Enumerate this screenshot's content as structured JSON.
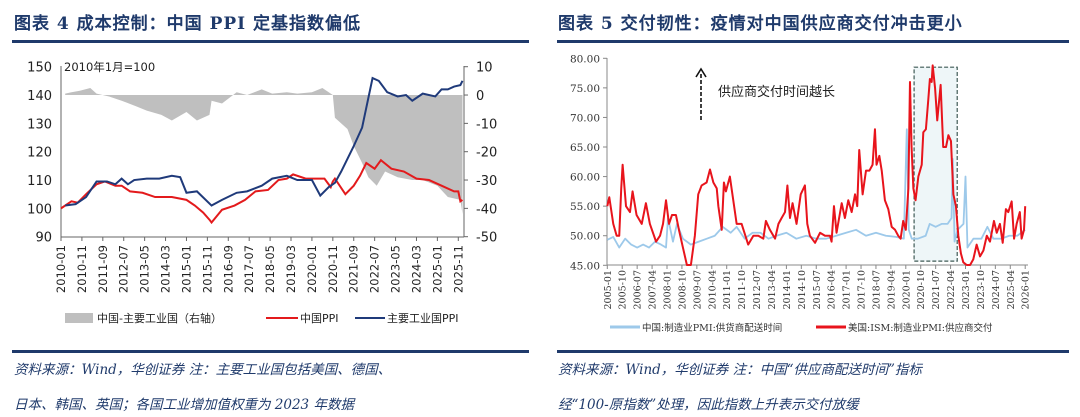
{
  "left": {
    "title": "图表 4   成本控制：中国 PPI 定基指数偏低",
    "note_line1": "资料来源：Wind，华创证券   注：主要工业国包括美国、德国、",
    "note_line2": "日本、韩国、英国；各国工业增加值权重为 2023 年数据"
  },
  "right": {
    "title": "图表 5   交付韧性：疫情对中国供应商交付冲击更小",
    "note_line1": "资料来源：Wind，华创证券   注：中国“供应商配送时间”指标",
    "note_line2": "经“100-原指数”处理，因此指数上升表示交付放缓"
  },
  "chart_data": [
    {
      "type": "line",
      "annotation": "2010年1月=100",
      "ylim": [
        90,
        150
      ],
      "yticks": [
        "150",
        "140",
        "130",
        "120",
        "110",
        "100",
        "90"
      ],
      "y2lim": [
        -50,
        10
      ],
      "y2ticks": [
        "10",
        "0",
        "-10",
        "-20",
        "-30",
        "-40",
        "-50"
      ],
      "xticks": [
        "2010-01",
        "2010-11",
        "2011-09",
        "2012-07",
        "2013-05",
        "2014-03",
        "2015-01",
        "2015-11",
        "2016-09",
        "2017-07",
        "2018-05",
        "2019-03",
        "2020-01",
        "2020-11",
        "2021-09",
        "2022-07",
        "2023-05",
        "2024-03",
        "2025-01",
        "2025-11"
      ],
      "legend_position": "bottom",
      "series": [
        {
          "name": "中国-主要工业国（右轴）",
          "type": "area",
          "axis": "right",
          "color": "#bfbfbf",
          "x": [
            "2010-03",
            "2010-06",
            "2010-10",
            "2011-03",
            "2011-06",
            "2011-12",
            "2012-06",
            "2013-01",
            "2013-06",
            "2014-01",
            "2014-06",
            "2015-01",
            "2015-06",
            "2015-12",
            "2016-01",
            "2016-06",
            "2017-01",
            "2017-06",
            "2018-01",
            "2018-06",
            "2019-01",
            "2019-06",
            "2020-01",
            "2020-06",
            "2020-11",
            "2020-12",
            "2021-06",
            "2021-09",
            "2022-01",
            "2022-04",
            "2022-08",
            "2022-12",
            "2023-06",
            "2024-01",
            "2024-06",
            "2025-01",
            "2025-06",
            "2025-12",
            "2026-01"
          ],
          "values": [
            0.5,
            1,
            1.5,
            2.5,
            0.5,
            -0.5,
            -2,
            -4,
            -5.5,
            -7,
            -9,
            -6,
            -9,
            -7,
            -2,
            -3,
            1,
            0,
            2,
            0.5,
            1,
            0.5,
            1,
            2.5,
            0,
            -8,
            -12,
            -18,
            -24,
            -29,
            -32,
            -27,
            -29,
            -30,
            -30,
            -32,
            -36,
            -37,
            -42
          ]
        },
        {
          "name": "中国PPI",
          "type": "line",
          "axis": "left",
          "color": "#e31a1c",
          "x": [
            "2010-01",
            "2010-06",
            "2010-09",
            "2011-01",
            "2011-06",
            "2011-10",
            "2012-03",
            "2012-06",
            "2012-10",
            "2013-04",
            "2013-10",
            "2014-06",
            "2015-01",
            "2015-05",
            "2015-09",
            "2015-12",
            "2016-01",
            "2016-06",
            "2016-12",
            "2017-05",
            "2017-10",
            "2018-04",
            "2018-09",
            "2019-01",
            "2019-04",
            "2019-10",
            "2020-04",
            "2020-07",
            "2020-10",
            "2020-11",
            "2020-12",
            "2021-05",
            "2021-09",
            "2021-12",
            "2022-03",
            "2022-07",
            "2022-10",
            "2023-03",
            "2023-09",
            "2024-03",
            "2024-09",
            "2025-03",
            "2025-09",
            "2025-11",
            "2025-12",
            "2026-01"
          ],
          "values": [
            100,
            102.5,
            102,
            105,
            108.5,
            109.5,
            108,
            108,
            106,
            105.5,
            104,
            104,
            103,
            101,
            98.5,
            96,
            95,
            99.5,
            101,
            103,
            106,
            106.5,
            110,
            110.5,
            112,
            110.5,
            110.5,
            110.5,
            107.5,
            109.5,
            110.5,
            105,
            108,
            111.5,
            116,
            114,
            117,
            114,
            113,
            110.5,
            110,
            108,
            106,
            106,
            102.5,
            103
          ]
        },
        {
          "name": "主要工业国PPI",
          "type": "line",
          "axis": "left",
          "color": "#1f3a7a",
          "x": [
            "2010-03",
            "2010-08",
            "2011-01",
            "2011-06",
            "2011-11",
            "2012-03",
            "2012-06",
            "2012-09",
            "2012-12",
            "2013-06",
            "2013-12",
            "2014-06",
            "2014-10",
            "2015-01",
            "2015-06",
            "2016-01",
            "2016-06",
            "2017-01",
            "2017-06",
            "2018-01",
            "2018-06",
            "2019-01",
            "2019-06",
            "2020-01",
            "2020-05",
            "2020-09",
            "2020-12",
            "2021-03",
            "2021-09",
            "2022-01",
            "2022-06",
            "2022-09",
            "2023-01",
            "2023-06",
            "2023-10",
            "2024-01",
            "2024-06",
            "2024-12",
            "2025-03",
            "2025-06",
            "2025-09",
            "2025-12",
            "2026-01"
          ],
          "values": [
            101,
            101.5,
            104,
            109.5,
            109.5,
            108.5,
            110.5,
            108.5,
            110,
            110.5,
            110.5,
            111.5,
            111,
            105.5,
            106,
            101,
            103,
            105.5,
            106,
            108,
            110.5,
            111.5,
            110,
            110,
            104.5,
            107.5,
            109,
            113,
            122,
            128.5,
            146,
            145,
            141,
            139.5,
            140,
            138,
            140.5,
            139.5,
            142,
            142,
            143,
            143.5,
            145
          ]
        }
      ]
    },
    {
      "type": "line",
      "annotation": "供应商交付时间越长",
      "ylim": [
        45,
        80
      ],
      "yticks": [
        "80.00",
        "75.00",
        "70.00",
        "65.00",
        "60.00",
        "55.00",
        "50.00",
        "45.00"
      ],
      "xticks": [
        "2005-01",
        "2005-10",
        "2006-07",
        "2007-04",
        "2008-01",
        "2008-10",
        "2009-07",
        "2010-04",
        "2011-01",
        "2011-10",
        "2012-07",
        "2013-04",
        "2014-01",
        "2014-10",
        "2015-07",
        "2016-04",
        "2017-01",
        "2017-10",
        "2018-07",
        "2019-04",
        "2020-01",
        "2020-10",
        "2021-07",
        "2022-04",
        "2023-01",
        "2023-10",
        "2024-07",
        "2025-04",
        "2026-01"
      ],
      "highlight_box": {
        "x": [
          "2020-06",
          "2022-08"
        ],
        "y": [
          45.7,
          78.5
        ]
      },
      "legend_position": "bottom",
      "series": [
        {
          "name": "中国:制造业PMI:供货商配送时间",
          "color": "#9dc9ea",
          "x": [
            2005.0,
            2005.3,
            2005.6,
            2005.9,
            2006.2,
            2006.5,
            2006.8,
            2007.1,
            2007.4,
            2007.7,
            2007.95,
            2008.05,
            2008.3,
            2008.5,
            2008.8,
            2009.2,
            2009.6,
            2010.0,
            2010.4,
            2010.8,
            2011.2,
            2011.5,
            2011.9,
            2012.3,
            2012.7,
            2013.1,
            2013.5,
            2014.0,
            2014.5,
            2015.0,
            2015.5,
            2016.0,
            2016.5,
            2017.0,
            2017.5,
            2018.0,
            2018.5,
            2019.0,
            2019.5,
            2019.9,
            2020.05,
            2020.15,
            2020.3,
            2020.6,
            2021.0,
            2021.2,
            2021.5,
            2021.8,
            2022.1,
            2022.3,
            2022.36,
            2022.45,
            2022.6,
            2022.9,
            2023.0,
            2023.1,
            2023.4,
            2023.8,
            2024.1,
            2024.4,
            2024.8,
            2025.2,
            2025.6,
            2026.0
          ],
          "values": [
            49.3,
            49.8,
            48,
            49.5,
            48.5,
            48,
            48.5,
            48,
            49,
            48.5,
            48,
            53,
            49,
            52,
            49.5,
            48.5,
            49,
            49.5,
            50,
            51.5,
            50.5,
            51.5,
            49.5,
            50.5,
            50.5,
            49.5,
            50,
            50.5,
            49.5,
            50,
            49.5,
            49.5,
            50,
            50.5,
            51,
            50,
            50.5,
            50,
            49.8,
            49.5,
            68,
            51,
            49.5,
            49.5,
            50,
            52,
            51.5,
            52,
            52,
            53,
            63,
            49,
            51,
            52,
            60,
            48,
            49.5,
            49.5,
            51.5,
            49.5,
            49.5,
            50,
            50,
            51
          ]
        },
        {
          "name": "美国:ISM:制造业PMI:供应商交付",
          "color": "#e8141c",
          "x": [
            2005.0,
            2005.1,
            2005.3,
            2005.47,
            2005.6,
            2005.7,
            2005.77,
            2005.94,
            2006.14,
            2006.27,
            2006.47,
            2006.73,
            2006.94,
            2007.14,
            2007.45,
            2007.65,
            2007.8,
            2007.95,
            2008.1,
            2008.25,
            2008.45,
            2008.6,
            2008.8,
            2009.0,
            2009.2,
            2009.4,
            2009.57,
            2009.74,
            2009.99,
            2010.16,
            2010.33,
            2010.5,
            2010.58,
            2010.75,
            2010.86,
            2010.96,
            2011.16,
            2011.33,
            2011.5,
            2011.75,
            2012.08,
            2012.34,
            2012.59,
            2012.84,
            2012.97,
            2013.17,
            2013.43,
            2013.6,
            2013.76,
            2013.93,
            2014.05,
            2014.18,
            2014.31,
            2014.51,
            2014.72,
            2014.93,
            2015.05,
            2015.18,
            2015.44,
            2015.69,
            2015.94,
            2016.19,
            2016.27,
            2016.39,
            2016.52,
            2016.78,
            2016.94,
            2017.11,
            2017.28,
            2017.45,
            2017.56,
            2017.66,
            2017.83,
            2018.0,
            2018.17,
            2018.33,
            2018.45,
            2018.53,
            2018.67,
            2018.79,
            2018.95,
            2019.12,
            2019.29,
            2019.46,
            2019.62,
            2019.74,
            2019.87,
            2020.0,
            2020.13,
            2020.21,
            2020.29,
            2020.38,
            2020.49,
            2020.63,
            2020.8,
            2020.88,
            2021.01,
            2021.13,
            2021.21,
            2021.3,
            2021.35,
            2021.47,
            2021.58,
            2021.75,
            2021.88,
            2022.02,
            2022.14,
            2022.27,
            2022.39,
            2022.52,
            2022.64,
            2022.77,
            2022.89,
            2023.06,
            2023.23,
            2023.39,
            2023.56,
            2023.73,
            2023.9,
            2024.07,
            2024.23,
            2024.43,
            2024.57,
            2024.73,
            2024.87,
            2025.03,
            2025.15,
            2025.32,
            2025.44,
            2025.57,
            2025.73,
            2025.82,
            2025.94,
            2026.0
          ],
          "values": [
            55,
            56.5,
            52,
            50,
            50,
            58,
            62,
            55,
            54,
            57.5,
            53.5,
            52,
            55.5,
            52,
            49,
            50,
            52,
            56,
            52,
            53.5,
            53.5,
            51,
            48,
            45,
            45,
            50,
            57,
            58.5,
            59,
            61.2,
            59,
            58,
            55,
            51,
            59,
            57.5,
            60,
            56,
            52,
            52,
            48.5,
            50,
            50,
            49.5,
            52.5,
            51,
            49.5,
            52,
            53,
            54,
            58.5,
            53,
            55.5,
            52,
            57,
            58.5,
            52,
            50,
            48.8,
            50.5,
            50,
            50,
            49,
            55,
            50.5,
            55.5,
            53,
            56,
            54,
            57,
            55,
            64.5,
            57,
            61,
            61,
            62,
            68,
            62,
            63.5,
            61,
            56,
            54.5,
            51.5,
            51,
            50,
            49.5,
            52.5,
            51,
            58,
            76,
            65,
            58,
            56,
            60,
            62,
            67.5,
            68,
            73,
            76.5,
            76,
            78.8,
            75,
            69.5,
            75.5,
            65,
            65,
            67,
            66,
            57,
            55,
            50,
            47,
            45.5,
            45,
            44.5,
            46,
            48.5,
            46.5,
            47.5,
            50,
            49,
            52.5,
            50.5,
            52,
            48.8,
            54.5,
            54,
            55.8,
            49.5,
            52,
            54,
            49.5,
            51,
            55
          ]
        }
      ]
    }
  ]
}
